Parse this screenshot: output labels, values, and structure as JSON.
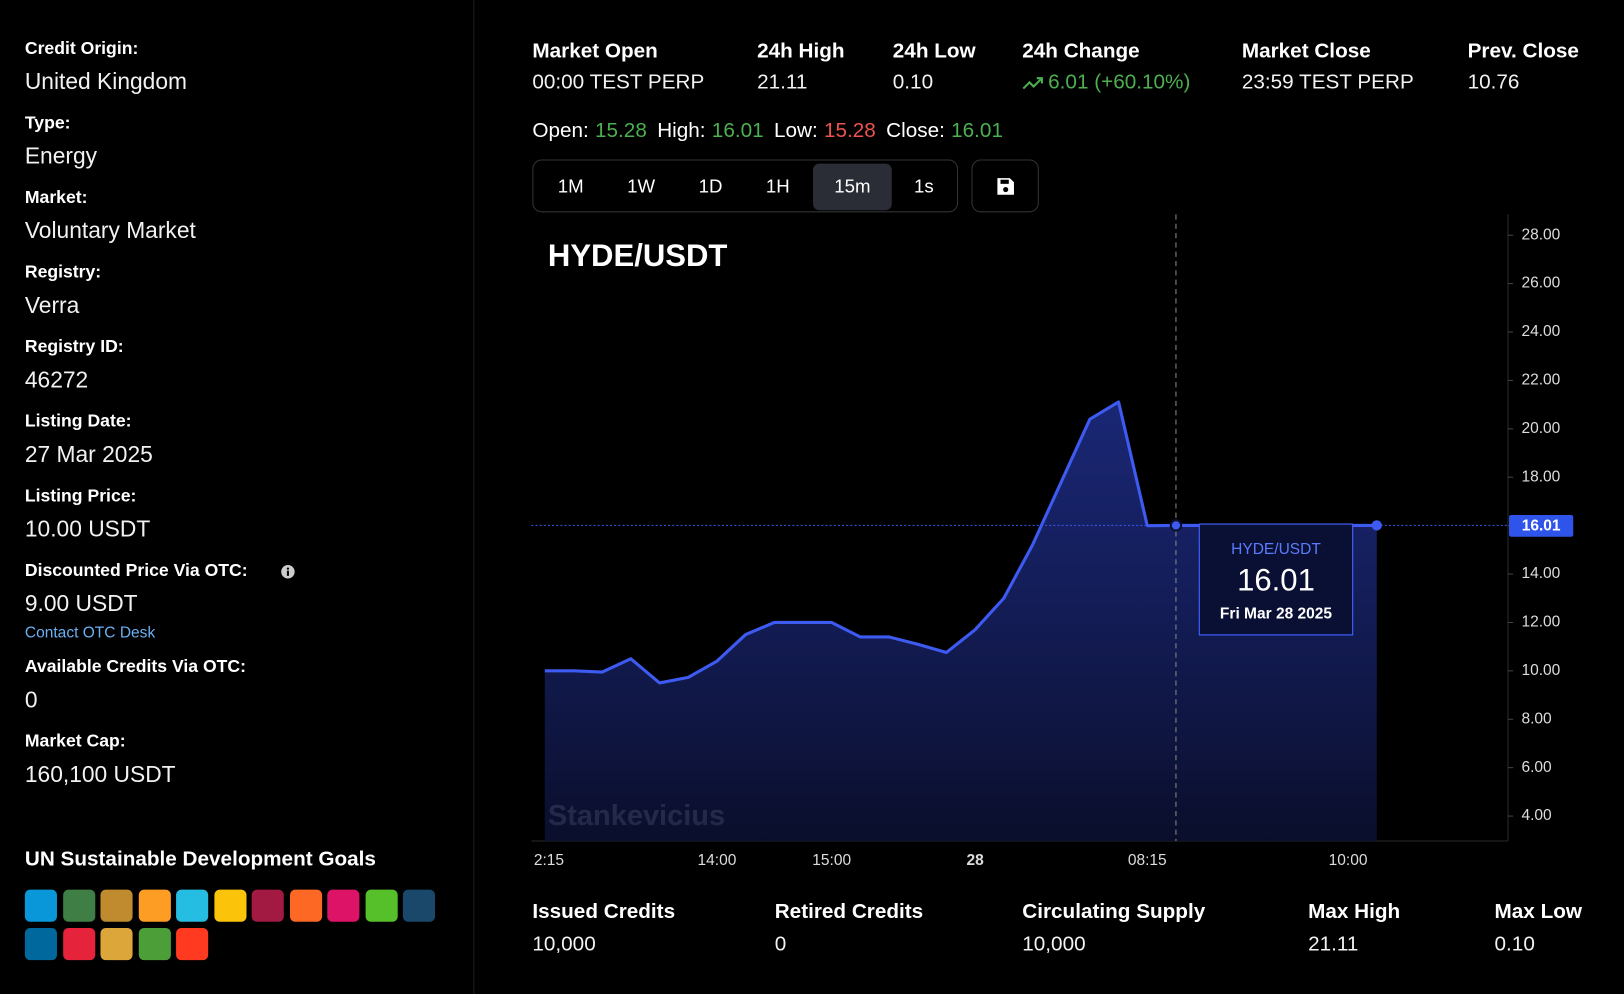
{
  "sidebar": {
    "fields": [
      {
        "label": "Credit Origin:",
        "value": "United Kingdom"
      },
      {
        "label": "Type:",
        "value": "Energy"
      },
      {
        "label": "Market:",
        "value": "Voluntary Market"
      },
      {
        "label": "Registry:",
        "value": "Verra"
      },
      {
        "label": "Registry ID:",
        "value": "46272"
      },
      {
        "label": "Listing Date:",
        "value": "27 Mar 2025"
      },
      {
        "label": "Listing Price:",
        "value": "10.00 USDT"
      },
      {
        "label": "Discounted Price Via OTC:",
        "value": "9.00 USDT",
        "link": "Contact OTC Desk"
      },
      {
        "label": "Available Credits Via OTC:",
        "value": "0"
      },
      {
        "label": "Market Cap:",
        "value": "160,100 USDT"
      }
    ],
    "sdg_title": "UN Sustainable Development Goals"
  },
  "stats": [
    {
      "label": "Market Open",
      "value": "00:00 TEST PERP"
    },
    {
      "label": "24h High",
      "value": "21.11"
    },
    {
      "label": "24h Low",
      "value": "0.10"
    },
    {
      "label": "24h Change",
      "value": "6.01 (+60.10%)",
      "color": "#4caf50"
    },
    {
      "label": "Market Close",
      "value": "23:59 TEST PERP"
    },
    {
      "label": "Prev. Close",
      "value": "10.76"
    }
  ],
  "ohlc": [
    {
      "label": "Open:",
      "value": 15.28,
      "color": "#4caf50"
    },
    {
      "label": "High:",
      "value": 16.01,
      "color": "#4caf50"
    },
    {
      "label": "Low:",
      "value": 15.28,
      "color": "#ef5350"
    },
    {
      "label": "Close:",
      "value": 16.01,
      "color": "#4caf50"
    }
  ],
  "timeframes": {
    "options": [
      "1M",
      "1W",
      "1D",
      "1H",
      "15m",
      "1s"
    ],
    "active": 4
  },
  "chart_data": {
    "type": "line",
    "title": "HYDE/USDT",
    "watermark": "Stankevicius",
    "categories": [
      "2:15",
      null,
      null,
      null,
      null,
      null,
      "14:00",
      null,
      null,
      null,
      "15:00",
      null,
      null,
      null,
      null,
      "28",
      null,
      null,
      null,
      null,
      null,
      "08:15",
      null,
      null,
      null,
      null,
      null,
      null,
      "10:00",
      null
    ],
    "values": [
      10.0,
      10.0,
      9.95,
      10.5,
      9.5,
      9.73,
      10.4,
      11.5,
      12.0,
      12.0,
      12.0,
      11.4,
      11.4,
      11.1,
      10.76,
      11.7,
      13.0,
      15.2,
      17.8,
      20.4,
      21.11,
      16.0,
      16.01,
      16.01,
      16.01,
      16.01,
      16.01,
      16.01,
      16.01,
      16.01
    ],
    "color": "#3d5af1",
    "ylim": [
      2.97,
      28.86
    ],
    "yticks": [
      {
        "value": 4,
        "label": "4.00"
      },
      {
        "value": 6,
        "label": "6.00"
      },
      {
        "value": 8,
        "label": "8.00"
      },
      {
        "value": 10,
        "label": "10.00"
      },
      {
        "value": 12,
        "label": "12.00"
      },
      {
        "value": 14,
        "label": "14.00"
      },
      {
        "value": 16,
        "label": "16.00"
      },
      {
        "value": 18,
        "label": "18.00"
      },
      {
        "value": 20,
        "label": "20.00"
      },
      {
        "value": 22,
        "label": "22.00"
      },
      {
        "value": 24,
        "label": "24.00"
      },
      {
        "value": 26,
        "label": "26.00"
      },
      {
        "value": 28,
        "label": "28.00"
      }
    ],
    "tooltip": {
      "date": "Fri Mar 28 2025"
    }
  },
  "footer_stats": [
    {
      "label": "Issued Credits",
      "value": "10,000"
    },
    {
      "label": "Retired Credits",
      "value": "0"
    },
    {
      "label": "Circulating Supply",
      "value": "10,000"
    },
    {
      "label": "Max High",
      "value": "21.11"
    },
    {
      "label": "Max Low",
      "value": "0.10"
    }
  ]
}
